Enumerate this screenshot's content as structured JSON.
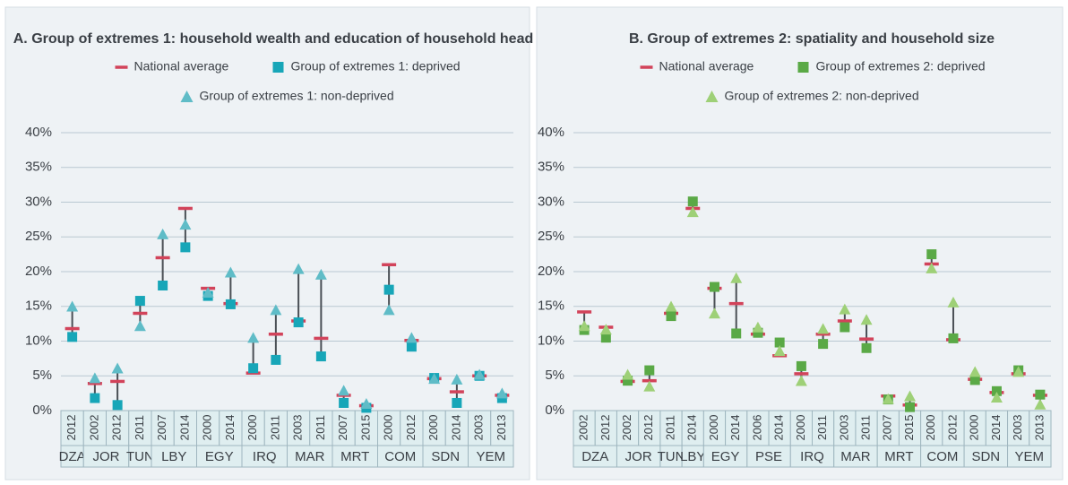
{
  "chart_data": [
    {
      "type": "dot",
      "title": "A. Group of extremes 1: household wealth and education of household head",
      "groups": [
        {
          "name": "DZA",
          "years": [
            "2012"
          ]
        },
        {
          "name": "JOR",
          "years": [
            "2002",
            "2012"
          ]
        },
        {
          "name": "TUN",
          "years": [
            "2011"
          ]
        },
        {
          "name": "LBY",
          "years": [
            "2007",
            "2014"
          ]
        },
        {
          "name": "EGY",
          "years": [
            "2000",
            "2014"
          ]
        },
        {
          "name": "IRQ",
          "years": [
            "2000",
            "2011"
          ]
        },
        {
          "name": "MAR",
          "years": [
            "2003",
            "2011"
          ]
        },
        {
          "name": "MRT",
          "years": [
            "2007",
            "2015"
          ]
        },
        {
          "name": "COM",
          "years": [
            "2000",
            "2012"
          ]
        },
        {
          "name": "SDN",
          "years": [
            "2000",
            "2014"
          ]
        },
        {
          "name": "YEM",
          "years": [
            "2003",
            "2013"
          ]
        }
      ],
      "series": [
        {
          "name": "National average",
          "color": "#d2435a",
          "marker": "dash",
          "values": [
            11.8,
            3.9,
            4.2,
            14.0,
            22.0,
            29.1,
            17.6,
            15.4,
            5.4,
            11.0,
            12.9,
            10.4,
            2.2,
            0.7,
            21.0,
            10.1,
            4.6,
            2.7,
            5.0,
            2.2
          ]
        },
        {
          "name": "Group of extremes 1: deprived",
          "color": "#17a6b8",
          "marker": "square",
          "values": [
            10.6,
            1.8,
            0.8,
            15.8,
            18.0,
            23.5,
            16.5,
            15.3,
            6.1,
            7.3,
            12.7,
            7.8,
            1.1,
            0.4,
            17.4,
            9.2,
            4.7,
            1.1,
            5.0,
            1.8
          ]
        },
        {
          "name": "Group of extremes 1: non-deprived",
          "color": "#5fbcc7",
          "marker": "triangle",
          "values": [
            14.9,
            4.6,
            6.0,
            12.1,
            25.3,
            26.7,
            16.9,
            19.8,
            10.4,
            14.4,
            20.3,
            19.5,
            2.8,
            0.9,
            14.4,
            10.4,
            4.5,
            4.4,
            5.1,
            2.4
          ]
        }
      ],
      "ylim": [
        0,
        40
      ],
      "yticks": [
        {
          "value": 0,
          "label": "0%"
        },
        {
          "value": 5,
          "label": "5%"
        },
        {
          "value": 10,
          "label": "10%"
        },
        {
          "value": 15,
          "label": "15%"
        },
        {
          "value": 20,
          "label": "20%"
        },
        {
          "value": 25,
          "label": "25%"
        },
        {
          "value": 30,
          "label": "30%"
        },
        {
          "value": 35,
          "label": "35%"
        },
        {
          "value": 40,
          "label": "40%"
        }
      ],
      "grid": true
    },
    {
      "type": "dot",
      "title": "B. Group of extremes 2: spatiality and household size",
      "groups": [
        {
          "name": "DZA",
          "years": [
            "2002",
            "2012"
          ]
        },
        {
          "name": "JOR",
          "years": [
            "2002",
            "2012"
          ]
        },
        {
          "name": "TUN",
          "years": [
            "2011"
          ]
        },
        {
          "name": "LBY",
          "years": [
            "2014"
          ]
        },
        {
          "name": "EGY",
          "years": [
            "2000",
            "2014"
          ]
        },
        {
          "name": "PSE",
          "years": [
            "2006",
            "2014"
          ]
        },
        {
          "name": "IRQ",
          "years": [
            "2000",
            "2011"
          ]
        },
        {
          "name": "MAR",
          "years": [
            "2003",
            "2011"
          ]
        },
        {
          "name": "MRT",
          "years": [
            "2007",
            "2015"
          ]
        },
        {
          "name": "COM",
          "years": [
            "2000",
            "2012"
          ]
        },
        {
          "name": "SDN",
          "years": [
            "2000",
            "2014"
          ]
        },
        {
          "name": "YEM",
          "years": [
            "2003",
            "2013"
          ]
        }
      ],
      "series": [
        {
          "name": "National average",
          "color": "#d2435a",
          "marker": "dash",
          "values": [
            14.2,
            12.0,
            4.2,
            4.3,
            14.0,
            29.1,
            17.6,
            15.4,
            11.0,
            7.9,
            5.3,
            11.0,
            12.9,
            10.3,
            2.1,
            0.8,
            21.1,
            10.2,
            4.5,
            2.6,
            5.3,
            2.2
          ]
        },
        {
          "name": "Group of extremes 2: deprived",
          "color": "#5aa946",
          "marker": "square",
          "values": [
            11.6,
            10.5,
            4.3,
            5.8,
            13.6,
            30.1,
            17.8,
            11.1,
            11.2,
            9.8,
            6.4,
            9.6,
            12.0,
            9.0,
            1.6,
            0.5,
            22.5,
            10.4,
            4.4,
            2.8,
            5.8,
            2.3
          ]
        },
        {
          "name": "Group of extremes 2: non-deprived",
          "color": "#9ed077",
          "marker": "triangle",
          "values": [
            12.1,
            11.6,
            5.1,
            3.4,
            14.9,
            28.5,
            13.9,
            19.0,
            11.9,
            8.5,
            4.2,
            11.7,
            14.5,
            13.0,
            1.6,
            2.0,
            20.4,
            15.5,
            5.5,
            1.8,
            5.5,
            0.8
          ]
        }
      ],
      "ylim": [
        0,
        40
      ],
      "yticks": [
        {
          "value": 0,
          "label": "0%"
        },
        {
          "value": 5,
          "label": "5%"
        },
        {
          "value": 10,
          "label": "10%"
        },
        {
          "value": 15,
          "label": "15%"
        },
        {
          "value": 20,
          "label": "20%"
        },
        {
          "value": 25,
          "label": "25%"
        },
        {
          "value": 30,
          "label": "30%"
        },
        {
          "value": 35,
          "label": "35%"
        },
        {
          "value": 40,
          "label": "40%"
        }
      ],
      "grid": true
    }
  ]
}
